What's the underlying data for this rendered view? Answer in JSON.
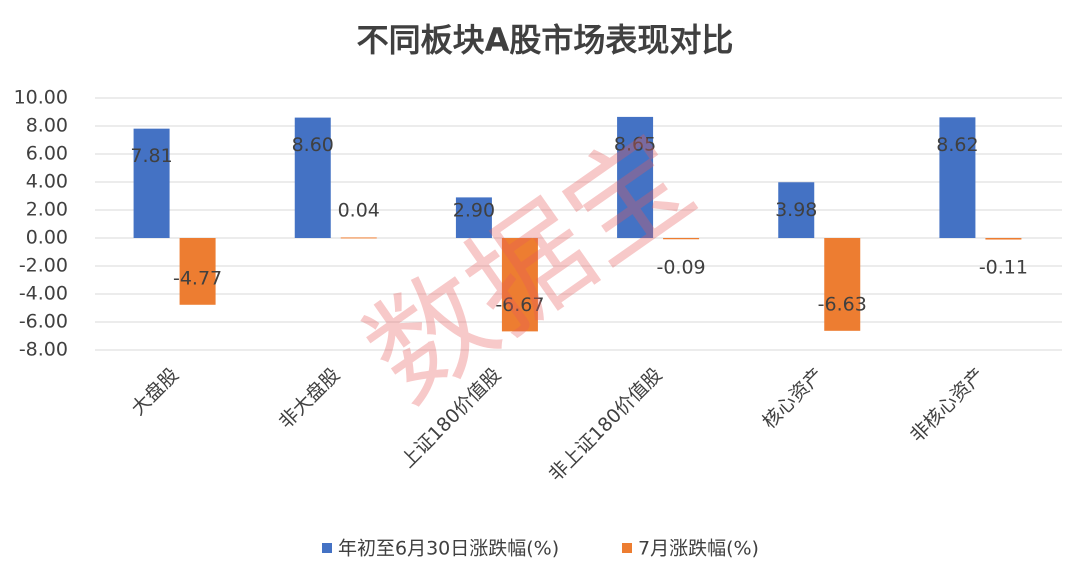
{
  "chart_data": {
    "type": "bar",
    "title": "不同板块A股市场表现对比",
    "watermark": "数据宝",
    "categories": [
      "大盘股",
      "非大盘股",
      "上证180价值股",
      "非上证180价值股",
      "核心资产",
      "非核心资产"
    ],
    "series": [
      {
        "name": "年初至6月30日涨跌幅(%)",
        "color": "#4472c4",
        "values": [
          7.81,
          8.6,
          2.9,
          8.65,
          3.98,
          8.62
        ],
        "value_labels": [
          "7.81",
          "8.60",
          "2.90",
          "8.65",
          "3.98",
          "8.62"
        ]
      },
      {
        "name": "7月涨跌幅(%)",
        "color": "#ed7d31",
        "values": [
          -4.77,
          0.04,
          -6.67,
          -0.09,
          -6.63,
          -0.11
        ],
        "value_labels": [
          "-4.77",
          "0.04",
          "-6.67",
          "-0.09",
          "-6.63",
          "-0.11"
        ]
      }
    ],
    "ylim": [
      -8,
      10
    ],
    "yticks": [
      {
        "value": -8,
        "label": "-8.00"
      },
      {
        "value": -6,
        "label": "-6.00"
      },
      {
        "value": -4,
        "label": "-4.00"
      },
      {
        "value": -2,
        "label": "-2.00"
      },
      {
        "value": 0,
        "label": "0.00"
      },
      {
        "value": 2,
        "label": "2.00"
      },
      {
        "value": 4,
        "label": "4.00"
      },
      {
        "value": 6,
        "label": "6.00"
      },
      {
        "value": 8,
        "label": "8.00"
      },
      {
        "value": 10,
        "label": "10.00"
      }
    ],
    "grid": true
  }
}
